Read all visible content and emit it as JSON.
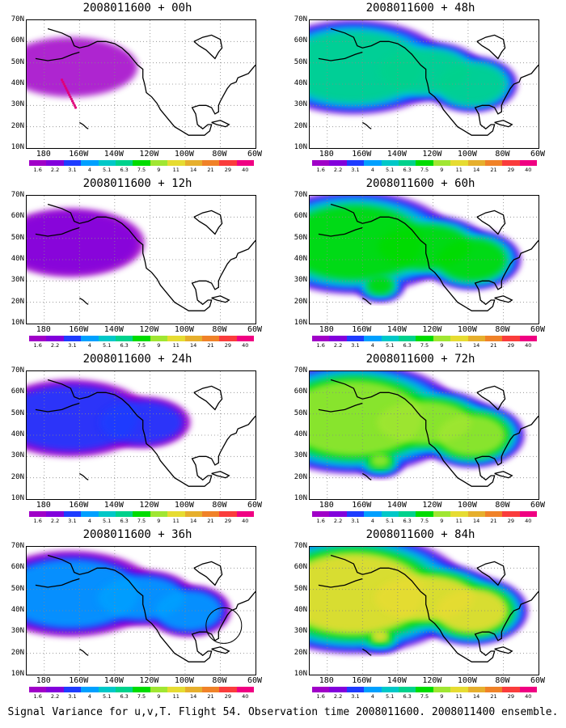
{
  "panels": [
    {
      "id": "p0",
      "title": "2008011600 + 00h",
      "level": 0
    },
    {
      "id": "p48",
      "title": "2008011600 + 48h",
      "level": 4
    },
    {
      "id": "p12",
      "title": "2008011600 + 12h",
      "level": 1
    },
    {
      "id": "p60",
      "title": "2008011600 + 60h",
      "level": 5
    },
    {
      "id": "p24",
      "title": "2008011600 + 24h",
      "level": 2
    },
    {
      "id": "p72",
      "title": "2008011600 + 72h",
      "level": 6
    },
    {
      "id": "p36",
      "title": "2008011600 + 36h",
      "level": 3
    },
    {
      "id": "p84",
      "title": "2008011600 + 84h",
      "level": 7
    }
  ],
  "lat_labels": [
    "70N",
    "60N",
    "50N",
    "40N",
    "30N",
    "20N",
    "10N"
  ],
  "lon_labels": [
    "180",
    "160W",
    "140W",
    "120W",
    "100W",
    "80W",
    "60W"
  ],
  "colorbar": {
    "colors": [
      "#a000c8",
      "#8200dc",
      "#1e3cff",
      "#00a0ff",
      "#00c8c8",
      "#00d28c",
      "#00dc00",
      "#a0e632",
      "#e6dc32",
      "#e6af2d",
      "#f08228",
      "#fa3c3c",
      "#f00082"
    ],
    "labels": [
      "1.6",
      "2.2",
      "3.1",
      "4",
      "5.1",
      "6.3",
      "7.5",
      "9",
      "11",
      "14",
      "21",
      "29",
      "40"
    ]
  },
  "caption": "Signal Variance for u,v,T. Flight 54. Observation time 2008011600. 2008011400 ensemble."
}
